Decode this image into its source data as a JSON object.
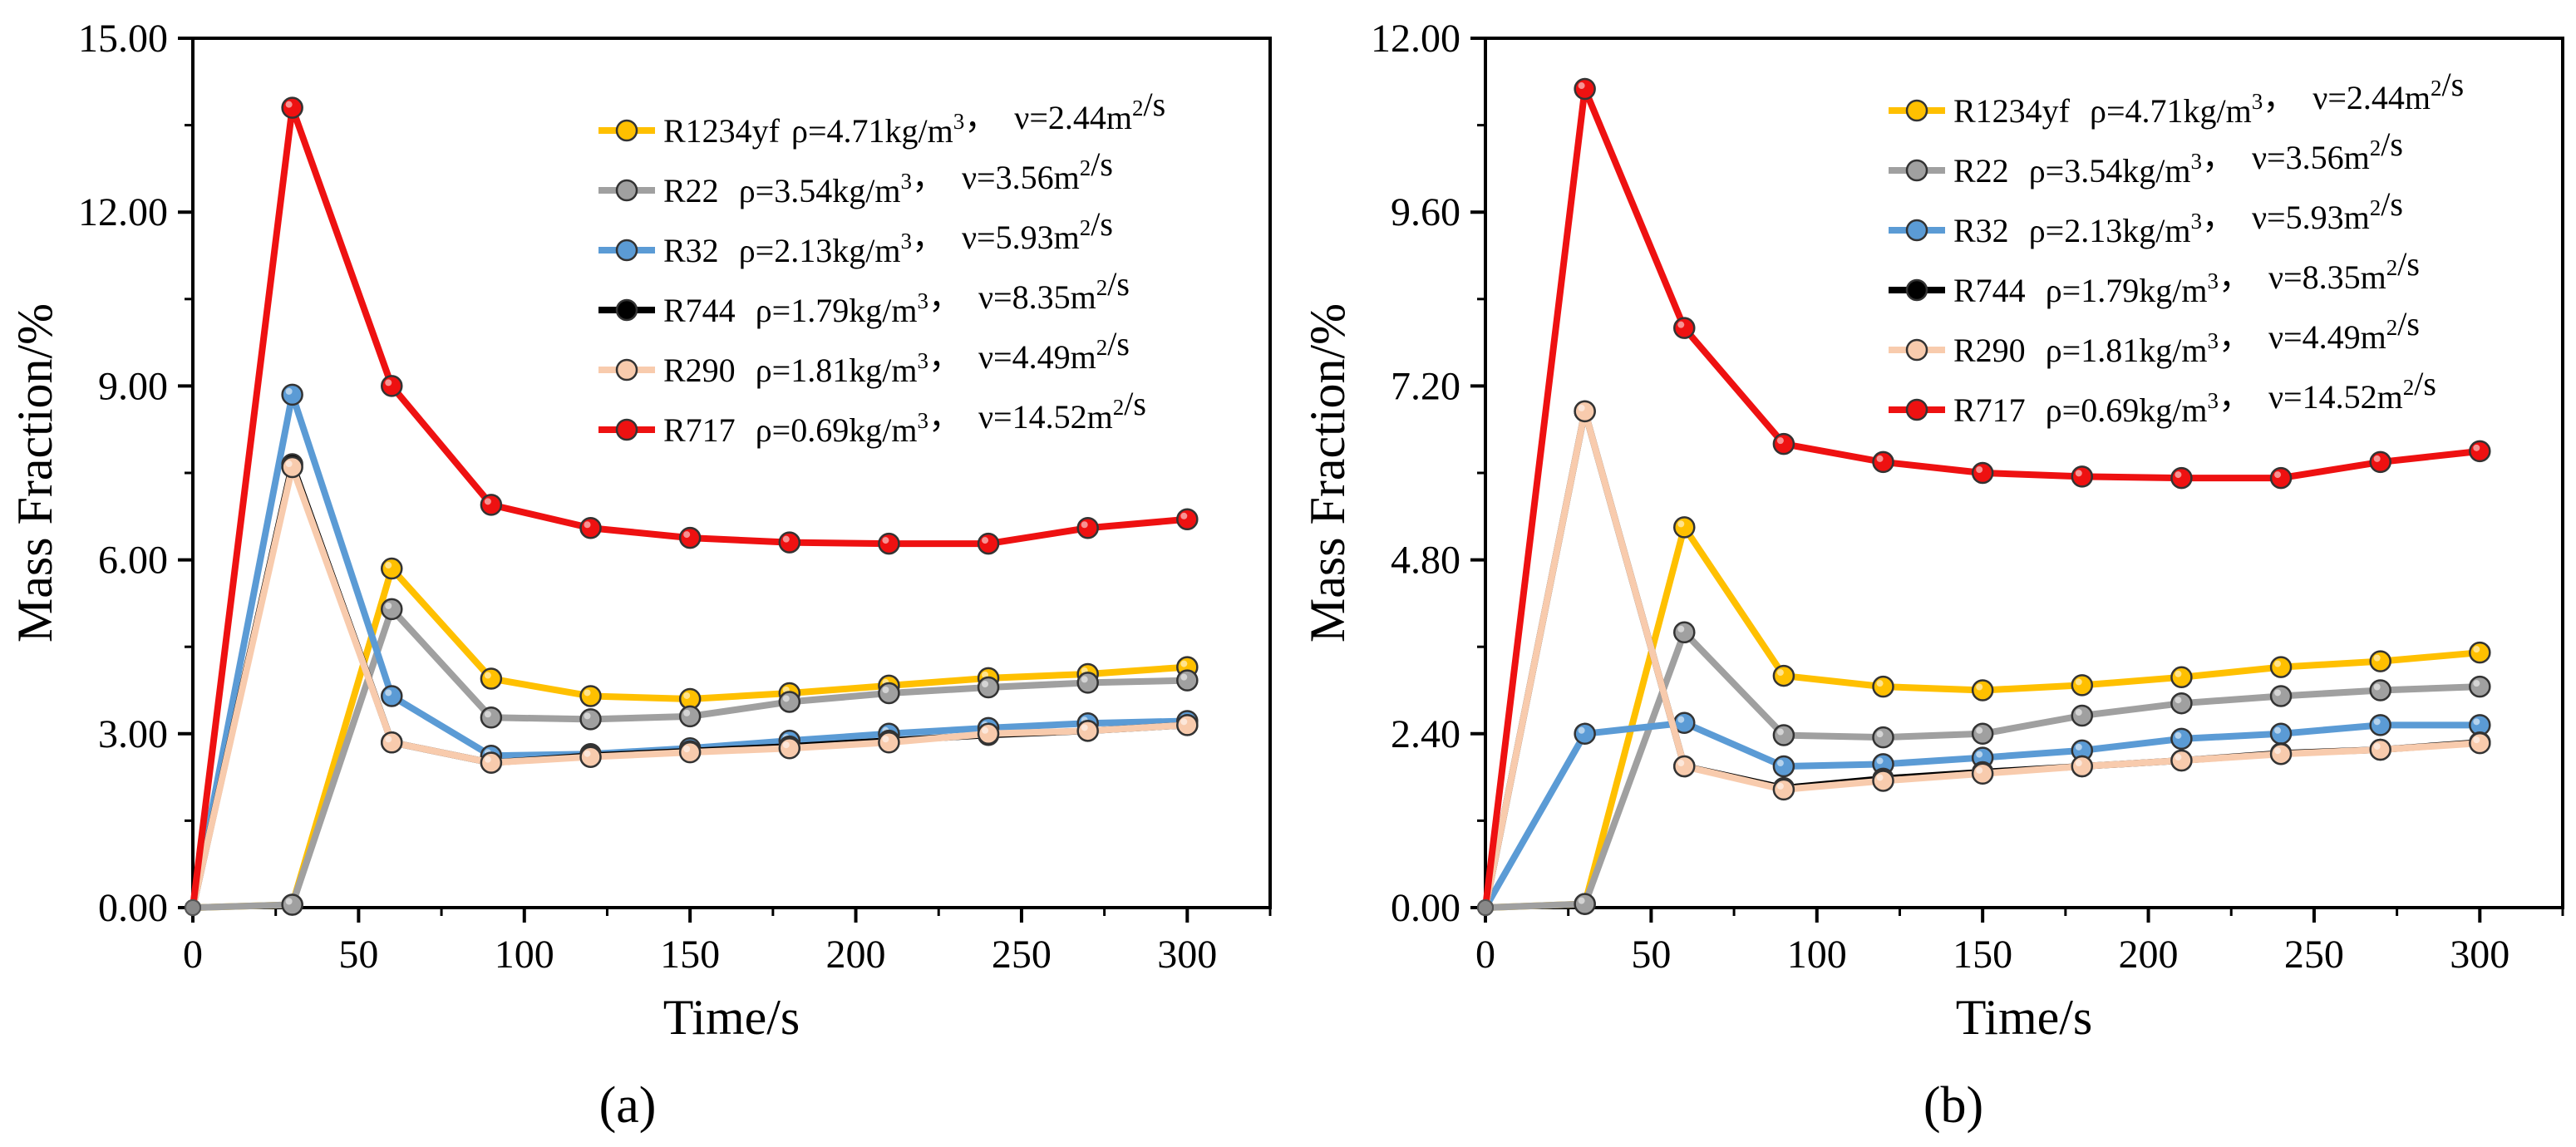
{
  "figure": {
    "panel_labels": [
      "(a)",
      "(b)"
    ]
  },
  "chart_data": [
    {
      "type": "line",
      "panel": "(a)",
      "xlabel": "Time/s",
      "ylabel": "Mass Fraction/%",
      "xlim": [
        0,
        325
      ],
      "ylim": [
        0,
        15
      ],
      "x_ticks": [
        "0",
        "50",
        "100",
        "150",
        "200",
        "250",
        "300"
      ],
      "y_ticks": [
        "0.00",
        "3.00",
        "6.00",
        "9.00",
        "12.00",
        "15.00"
      ],
      "grid": false,
      "legend_position": "top-right",
      "x": [
        0,
        30,
        60,
        90,
        120,
        150,
        180,
        210,
        240,
        270,
        300
      ],
      "series": [
        {
          "name": "R1234yf",
          "rho": "ρ=4.71kg/m",
          "nu": "ν=2.44m",
          "color": "#FFC000",
          "marker_fill": "#FFC000",
          "values": [
            0,
            0.05,
            5.85,
            3.95,
            3.65,
            3.6,
            3.7,
            3.83,
            3.96,
            4.03,
            4.15
          ]
        },
        {
          "name": "R22  ",
          "rho": "ρ=3.54kg/m",
          "nu": "ν=3.56m",
          "color": "#A0A0A0",
          "marker_fill": "#A0A0A0",
          "values": [
            0,
            0.05,
            5.15,
            3.28,
            3.25,
            3.3,
            3.55,
            3.7,
            3.8,
            3.88,
            3.92
          ]
        },
        {
          "name": "R32  ",
          "rho": "ρ=2.13kg/m",
          "nu": "ν=5.93m",
          "color": "#5B9BD5",
          "marker_fill": "#5B9BD5",
          "values": [
            0,
            8.85,
            3.65,
            2.62,
            2.65,
            2.75,
            2.88,
            3.0,
            3.1,
            3.18,
            3.22
          ]
        },
        {
          "name": "R744 ",
          "rho": "ρ=1.79kg/m",
          "nu": "ν=8.35m",
          "color": "#000000",
          "marker_fill": "#000000",
          "values": [
            0,
            7.65,
            2.85,
            2.5,
            2.62,
            2.7,
            2.78,
            2.88,
            2.98,
            3.05,
            3.15
          ]
        },
        {
          "name": "R290 ",
          "rho": "ρ=1.81kg/m",
          "nu": "ν=4.49m",
          "color": "#F8CBAD",
          "marker_fill": "#F8CBAD",
          "values": [
            0,
            7.6,
            2.85,
            2.5,
            2.6,
            2.68,
            2.75,
            2.85,
            3.0,
            3.05,
            3.15
          ]
        },
        {
          "name": "R717 ",
          "rho": "ρ=0.69kg/m",
          "nu": "ν=14.52m",
          "color": "#EE1111",
          "marker_fill": "#EE1111",
          "values": [
            0,
            13.8,
            9.0,
            6.95,
            6.55,
            6.38,
            6.3,
            6.28,
            6.28,
            6.55,
            6.7
          ]
        }
      ]
    },
    {
      "type": "line",
      "panel": "(b)",
      "xlabel": "Time/s",
      "ylabel": "Mass Fraction/%",
      "xlim": [
        0,
        325
      ],
      "ylim": [
        0,
        12
      ],
      "x_ticks": [
        "0",
        "50",
        "100",
        "150",
        "200",
        "250",
        "300"
      ],
      "y_ticks": [
        "0.00",
        "2.40",
        "4.80",
        "7.20",
        "9.60",
        "12.00"
      ],
      "grid": false,
      "legend_position": "top-right",
      "x": [
        0,
        30,
        60,
        90,
        120,
        150,
        180,
        210,
        240,
        270,
        300
      ],
      "series": [
        {
          "name": "R1234yf ",
          "rho": "ρ=4.71kg/m",
          "nu": "ν=2.44m",
          "color": "#FFC000",
          "marker_fill": "#FFC000",
          "values": [
            0,
            0.05,
            5.25,
            3.2,
            3.05,
            3.0,
            3.07,
            3.18,
            3.32,
            3.4,
            3.52
          ]
        },
        {
          "name": "R22  ",
          "rho": "ρ=3.54kg/m",
          "nu": "ν=3.56m",
          "color": "#A0A0A0",
          "marker_fill": "#A0A0A0",
          "values": [
            0,
            0.05,
            3.8,
            2.38,
            2.35,
            2.4,
            2.65,
            2.82,
            2.92,
            3.0,
            3.05
          ]
        },
        {
          "name": "R32  ",
          "rho": "ρ=2.13kg/m",
          "nu": "ν=5.93m",
          "color": "#5B9BD5",
          "marker_fill": "#5B9BD5",
          "values": [
            0,
            2.4,
            2.55,
            1.95,
            1.98,
            2.07,
            2.17,
            2.33,
            2.4,
            2.52,
            2.52
          ]
        },
        {
          "name": "R744 ",
          "rho": "ρ=1.79kg/m",
          "nu": "ν=8.35m",
          "color": "#000000",
          "marker_fill": "#000000",
          "values": [
            0,
            6.85,
            1.95,
            1.65,
            1.78,
            1.87,
            1.95,
            2.03,
            2.13,
            2.18,
            2.28
          ]
        },
        {
          "name": "R290 ",
          "rho": "ρ=1.81kg/m",
          "nu": "ν=4.49m",
          "color": "#F8CBAD",
          "marker_fill": "#F8CBAD",
          "values": [
            0,
            6.85,
            1.95,
            1.63,
            1.75,
            1.85,
            1.95,
            2.03,
            2.12,
            2.18,
            2.27
          ]
        },
        {
          "name": "R717 ",
          "rho": "ρ=0.69kg/m",
          "nu": "ν=14.52m",
          "color": "#EE1111",
          "marker_fill": "#EE1111",
          "values": [
            0,
            11.3,
            8.0,
            6.4,
            6.15,
            6.0,
            5.95,
            5.93,
            5.93,
            6.15,
            6.3
          ]
        }
      ]
    }
  ]
}
